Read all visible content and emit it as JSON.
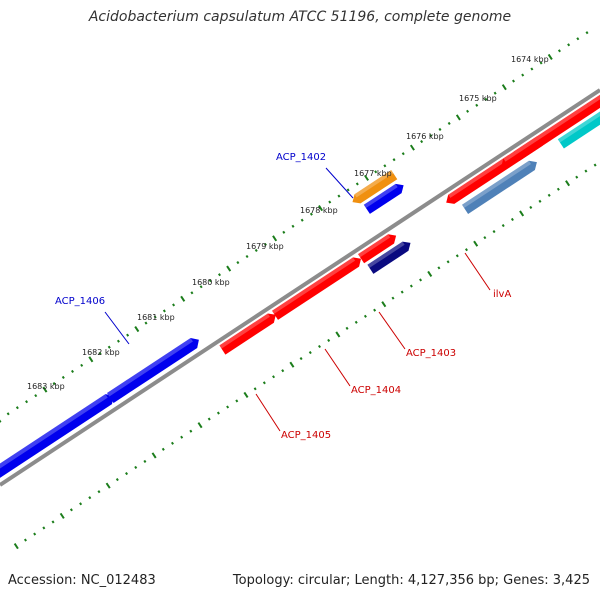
{
  "title": "Acidobacterium capsulatum ATCC 51196, complete genome",
  "footer": {
    "accession": "Accession: NC_012483",
    "summary": "Topology: circular; Length: 4,127,356 bp; Genes: 3,425"
  },
  "colors": {
    "background": "#ffffff",
    "backbone": "#8c8c8c",
    "tick_dots": "#1b7d1b",
    "gene_red": "#ff0000",
    "gene_blue": "#0000ee",
    "gene_orange": "#f09010",
    "gene_navy": "#0a0a80",
    "gene_steelblue": "#4f81b8",
    "gene_cyan": "#00c8c8",
    "label_blue": "#0000cc",
    "label_red": "#cc0000"
  },
  "ticks": [
    {
      "label": "1674 kbp"
    },
    {
      "label": "1675 kbp"
    },
    {
      "label": "1676 kbp"
    },
    {
      "label": "1677 kbp"
    },
    {
      "label": "1678 kbp"
    },
    {
      "label": "1679 kbp"
    },
    {
      "label": "1680 kbp"
    },
    {
      "label": "1681 kbp"
    },
    {
      "label": "1682 kbp"
    },
    {
      "label": "1683 kbp"
    }
  ],
  "genes": [
    {
      "name": "ACP_1406",
      "strand": "+",
      "color": "gene_blue"
    },
    {
      "name": "ACP_1405",
      "strand": "+",
      "color": "gene_red"
    },
    {
      "name": "ACP_1404",
      "strand": "+",
      "color": "gene_red"
    },
    {
      "name": "ACP_1403",
      "strand": "+",
      "color": "gene_navy"
    },
    {
      "name": "ACP_1402",
      "strand": "-",
      "color": "gene_orange"
    },
    {
      "name": "ilvA",
      "strand": "-",
      "color": "gene_steelblue"
    }
  ],
  "labels": [
    {
      "text": "ACP_1402",
      "color": "label_blue"
    },
    {
      "text": "ACP_1406",
      "color": "label_blue"
    },
    {
      "text": "ilvA",
      "color": "label_red"
    },
    {
      "text": "ACP_1403",
      "color": "label_red"
    },
    {
      "text": "ACP_1404",
      "color": "label_red"
    },
    {
      "text": "ACP_1405",
      "color": "label_red"
    }
  ]
}
